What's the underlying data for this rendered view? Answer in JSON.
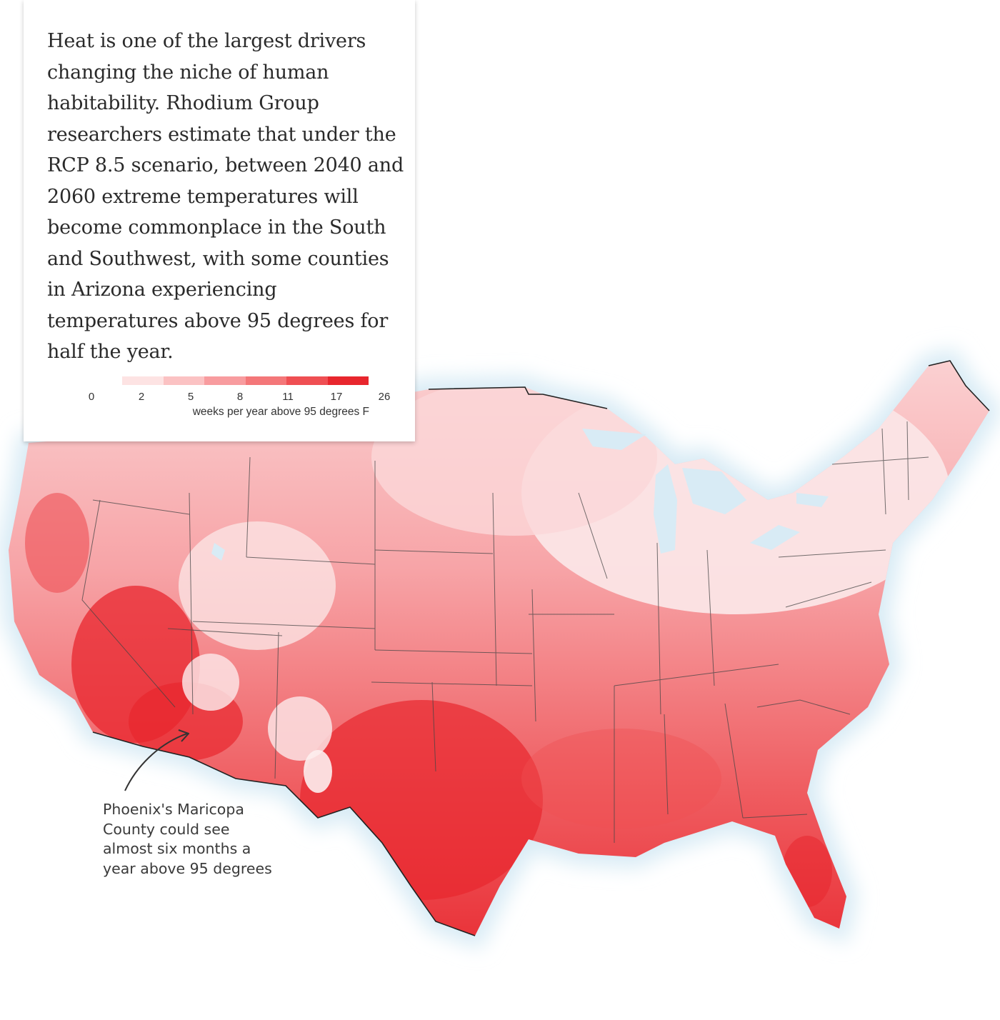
{
  "intro": {
    "text": "Heat is one of the largest drivers changing the niche of human habitability. Rhodium Group researchers estimate that under the RCP 8.5 scenario, between 2040 and 2060 extreme temperatures will become commonplace in the South and Southwest, with some counties in Arizona experiencing temperatures above 95 degrees for half the year."
  },
  "legend": {
    "ticks": [
      "0",
      "2",
      "5",
      "8",
      "11",
      "17",
      "26"
    ],
    "caption": "weeks per year above 95 degrees F",
    "colors": [
      "#fde3e3",
      "#fbc2c3",
      "#f89c9f",
      "#f47779",
      "#ef4f53",
      "#e8262d"
    ]
  },
  "annotation": {
    "text": "Phoenix's Maricopa County could see almost six months a year above 95 degrees"
  },
  "map": {
    "water_color": "#d8ebf5",
    "border_color": "#444444"
  }
}
